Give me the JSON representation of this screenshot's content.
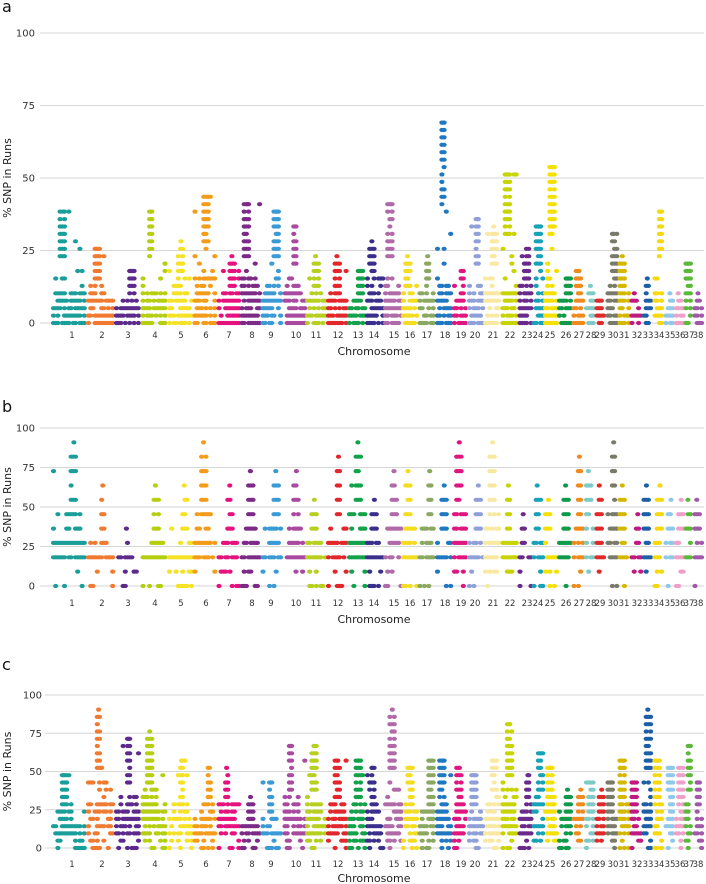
{
  "chart_data": {
    "type": "scatter",
    "colors": [
      "#1a9e9a",
      "#f07a2f",
      "#5c2a8c",
      "#b5cf10",
      "#f5e225",
      "#f39c1a",
      "#e5127e",
      "#7b2a86",
      "#3a9ad6",
      "#a94aa0",
      "#b7d020",
      "#e3262b",
      "#13a14b",
      "#3b2f8c",
      "#b06aa8",
      "#f4dc20",
      "#8aa860",
      "#1f78c1",
      "#e0167f",
      "#8fa0d8",
      "#f8e8a0",
      "#c8d400",
      "#6a2a8c",
      "#17a2b8",
      "#f5e000",
      "#0e9a4a",
      "#f08a1c",
      "#7ecac6",
      "#e02a2a",
      "#7a7a6a",
      "#d4b800",
      "#c01a80",
      "#1c5fa8",
      "#f6d80f",
      "#8fc9ea",
      "#f0a0c8",
      "#5bb83a",
      "#a158a8"
    ],
    "categories": [
      "1",
      "2",
      "3",
      "4",
      "5",
      "6",
      "7",
      "8",
      "9",
      "10",
      "11",
      "12",
      "13",
      "14",
      "15",
      "16",
      "17",
      "18",
      "19",
      "20",
      "21",
      "22",
      "23",
      "24",
      "25",
      "26",
      "27",
      "28",
      "29",
      "30",
      "31",
      "32",
      "33",
      "34",
      "35",
      "36",
      "37",
      "38"
    ],
    "panels": [
      {
        "label": "a",
        "xlabel": "Chromosome",
        "ylabel": "% SNP in Runs",
        "ylim": [
          0,
          100
        ],
        "yticks": [
          "0",
          "25",
          "50",
          "75",
          "100"
        ],
        "step": 2.56,
        "peak_percent": [
          39,
          26,
          18,
          39,
          28,
          44,
          23,
          41,
          39,
          34,
          23,
          23,
          18,
          28,
          41,
          23,
          23,
          70,
          18,
          36,
          33,
          52,
          26,
          34,
          54,
          16,
          18,
          12,
          8,
          31,
          23,
          10,
          15,
          39,
          10,
          10,
          21,
          10
        ]
      },
      {
        "label": "b",
        "xlabel": "Chromosome",
        "ylabel": "% SNP in Runs",
        "ylim": [
          0,
          100
        ],
        "yticks": [
          "0",
          "25",
          "50",
          "75",
          "100"
        ],
        "step": 9.09,
        "peak_percent": [
          90,
          63,
          36,
          63,
          63,
          90,
          63,
          72,
          72,
          72,
          54,
          81,
          90,
          54,
          72,
          72,
          72,
          63,
          90,
          63,
          90,
          63,
          45,
          63,
          54,
          63,
          81,
          72,
          63,
          90,
          63,
          45,
          63,
          63,
          54,
          54,
          54,
          54
        ]
      },
      {
        "label": "c",
        "xlabel": "Chromosome",
        "ylabel": "% SNP in Runs",
        "ylim": [
          0,
          100
        ],
        "yticks": [
          "0",
          "25",
          "50",
          "75",
          "100"
        ],
        "step": 4.76,
        "peak_percent": [
          48,
          90,
          72,
          76,
          58,
          53,
          53,
          33,
          43,
          67,
          67,
          58,
          58,
          53,
          90,
          53,
          58,
          58,
          53,
          48,
          58,
          81,
          48,
          62,
          53,
          38,
          38,
          43,
          38,
          43,
          58,
          43,
          90,
          58,
          53,
          53,
          67,
          43
        ]
      }
    ]
  }
}
